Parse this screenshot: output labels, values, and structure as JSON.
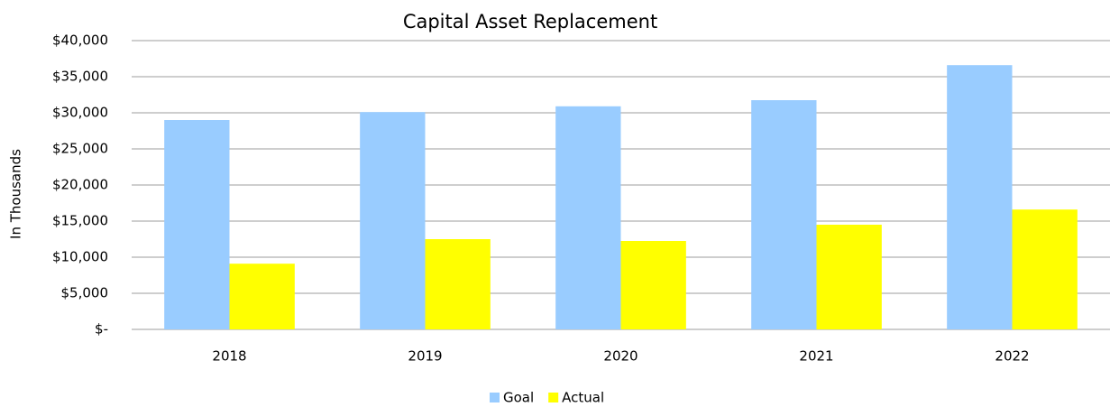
{
  "chart_data": {
    "type": "bar",
    "title": "Capital Asset Replacement",
    "y_label": "In Thousands",
    "categories": [
      "2018",
      "2019",
      "2020",
      "2021",
      "2022"
    ],
    "series": [
      {
        "name": "Goal",
        "color": "#99ccff",
        "values": [
          29000,
          30100,
          30900,
          31750,
          36600
        ]
      },
      {
        "name": "Actual",
        "color": "#ffff00",
        "values": [
          9100,
          12500,
          12250,
          14500,
          16600
        ]
      }
    ],
    "ylim": [
      0,
      40000
    ],
    "yticks": [
      {
        "value": 0,
        "label": "$-"
      },
      {
        "value": 5000,
        "label": "$5,000"
      },
      {
        "value": 10000,
        "label": "$10,000"
      },
      {
        "value": 15000,
        "label": "$15,000"
      },
      {
        "value": 20000,
        "label": "$20,000"
      },
      {
        "value": 25000,
        "label": "$25,000"
      },
      {
        "value": 30000,
        "label": "$30,000"
      },
      {
        "value": 35000,
        "label": "$35,000"
      },
      {
        "value": 40000,
        "label": "$40,000"
      }
    ],
    "grid": true,
    "legend": "bottom"
  }
}
